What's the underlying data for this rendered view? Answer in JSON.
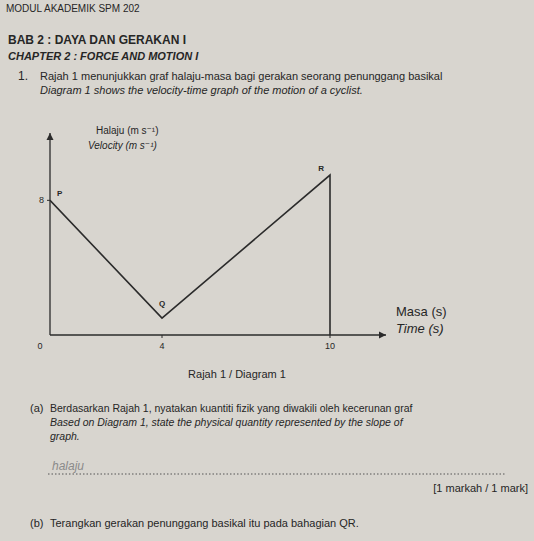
{
  "header": {
    "module": "MODUL AKADEMIK SPM 202",
    "chapter_ms": "BAB 2 : DAYA DAN GERAKAN I",
    "chapter_en": "CHAPTER 2 : FORCE AND MOTION I"
  },
  "question": {
    "number": "1.",
    "stem_ms": "Rajah 1 menunjukkan graf halaju-masa bagi gerakan seorang penunggang basikal",
    "stem_en": "Diagram 1 shows the velocity-time graph of the motion of a cyclist.",
    "caption": "Rajah 1 / Diagram 1",
    "parts": [
      {
        "label": "(a)",
        "text_ms": "Berdasarkan Rajah 1, nyatakan kuantiti fizik yang diwakili oleh kecerunan graf",
        "text_en": [
          "Based on Diagram 1, state the physical quantity represented by the slope of",
          "graph."
        ],
        "answer": "halaju",
        "marks": "[1 markah / 1 mark]"
      },
      {
        "label": "(b)",
        "text_ms": "Terangkan gerakan penunggang basikal itu pada bahagian QR."
      }
    ]
  },
  "chart_data": {
    "type": "line",
    "y_label": [
      "Halaju (m s⁻¹)",
      "Velocity (m s⁻¹)"
    ],
    "x_label": [
      "Masa (s)",
      "Time (s)"
    ],
    "x": [
      0,
      4,
      10,
      10
    ],
    "values": [
      8,
      1,
      9.5,
      0
    ],
    "point_labels": [
      "P",
      "Q",
      "R",
      null
    ],
    "color": "#2b2b2b",
    "xlim": [
      0,
      12
    ],
    "ylim": [
      0,
      12
    ],
    "xticks": [
      0,
      4,
      10
    ],
    "yticks": [
      8
    ],
    "grid": false
  }
}
